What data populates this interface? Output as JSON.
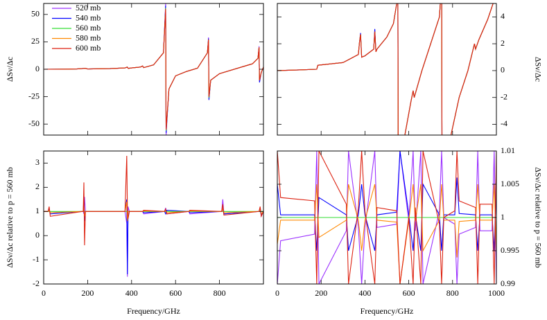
{
  "chart_data": [
    {
      "type": "line",
      "ylabel": "ΔSν/Δc",
      "xlim": [
        0,
        1000
      ],
      "ylim": [
        -60,
        60
      ],
      "xticks": [
        0,
        200,
        400,
        600,
        800
      ],
      "yticks": [
        -50,
        -25,
        0,
        25,
        50
      ],
      "legend": "upper left",
      "x": [
        0,
        100,
        150,
        190,
        200,
        300,
        370,
        380,
        385,
        400,
        440,
        450,
        455,
        500,
        545,
        555,
        557,
        570,
        600,
        650,
        700,
        745,
        750,
        752,
        760,
        800,
        900,
        950,
        975,
        980,
        982,
        990,
        1000
      ],
      "series": [
        {
          "name": "520 mb",
          "color": "#9b30ff",
          "values": [
            0,
            0.1,
            0.3,
            0.8,
            0.3,
            0.6,
            1.2,
            2,
            0.8,
            1.2,
            2,
            3,
            1.5,
            4,
            15,
            60,
            -60,
            -18,
            -6,
            -2,
            1,
            15,
            29,
            -27,
            -10,
            -4,
            2,
            5,
            10,
            21,
            -11,
            -3,
            2
          ]
        },
        {
          "name": "540 mb",
          "color": "#0000ff",
          "values": [
            0,
            0.1,
            0.3,
            0.8,
            0.3,
            0.6,
            1.2,
            2,
            0.8,
            1.2,
            2,
            3,
            1.5,
            4,
            15,
            58,
            -58,
            -18,
            -6,
            -2,
            1,
            15,
            28,
            -28,
            -10,
            -4,
            2,
            5,
            10,
            20,
            -12,
            -3,
            2
          ]
        },
        {
          "name": "560 mb",
          "color": "#33dd33",
          "values": [
            0,
            0.1,
            0.3,
            0.8,
            0.3,
            0.6,
            1.2,
            2,
            0.8,
            1.2,
            2,
            3,
            1.5,
            4,
            15,
            56,
            -56,
            -18,
            -6,
            -2,
            1,
            15,
            27,
            -26,
            -10,
            -4,
            2,
            5,
            10,
            20,
            -10,
            -3,
            2
          ]
        },
        {
          "name": "580 mb",
          "color": "#ff8800",
          "values": [
            0,
            0.1,
            0.3,
            0.8,
            0.3,
            0.6,
            1.2,
            2,
            0.8,
            1.2,
            2,
            3,
            1.5,
            4,
            15,
            55,
            -55,
            -18,
            -6,
            -2,
            1,
            15,
            27,
            -25,
            -10,
            -4,
            2,
            5,
            10,
            20,
            -10,
            -3,
            2
          ]
        },
        {
          "name": "600 mb",
          "color": "#dd2211",
          "values": [
            0,
            0.1,
            0.3,
            0.8,
            0.3,
            0.6,
            1.2,
            2,
            0.8,
            1.2,
            2,
            3,
            1.5,
            4,
            15,
            55,
            -55,
            -18,
            -6,
            -2,
            1,
            15,
            27,
            -25,
            -10,
            -4,
            2,
            5,
            10,
            20,
            -10,
            -3,
            2
          ]
        }
      ]
    },
    {
      "type": "line",
      "ylabel": "ΔSν/Δc",
      "xlim": [
        0,
        1000
      ],
      "ylim": [
        -4.8,
        5
      ],
      "xticks": [
        0,
        200,
        400,
        600,
        800,
        1000
      ],
      "yticks": [
        -4,
        -2,
        0,
        2,
        4
      ],
      "x": [
        0,
        100,
        180,
        185,
        300,
        370,
        375,
        380,
        385,
        400,
        440,
        445,
        450,
        455,
        500,
        530,
        545,
        550,
        552,
        560,
        580,
        610,
        620,
        625,
        660,
        700,
        740,
        748,
        750,
        752,
        790,
        830,
        870,
        900,
        905,
        920,
        960,
        985,
        1000
      ],
      "series": [
        {
          "name": "520 mb",
          "color": "#9b30ff",
          "values": [
            0,
            0.05,
            0.1,
            0.4,
            0.6,
            1.2,
            2.1,
            2.6,
            1,
            1.1,
            1.6,
            3,
            1.4,
            1.6,
            2.5,
            3.5,
            5,
            8,
            -8,
            -6,
            -5,
            -2.3,
            -1.5,
            -2,
            0,
            2,
            4,
            6,
            8,
            -8,
            -5,
            -2,
            0,
            2,
            1.6,
            2.3,
            3.8,
            5,
            6
          ]
        },
        {
          "name": "540 mb",
          "color": "#0000ff",
          "values": [
            0,
            0.05,
            0.1,
            0.4,
            0.6,
            1.2,
            2.1,
            2.8,
            1,
            1.1,
            1.6,
            3.1,
            1.4,
            1.6,
            2.5,
            3.5,
            5,
            8,
            -8,
            -6,
            -5,
            -2.3,
            -1.5,
            -2,
            0,
            2,
            4,
            6,
            8,
            -8,
            -5,
            -2,
            0,
            2,
            1.6,
            2.3,
            3.8,
            5,
            6
          ]
        },
        {
          "name": "560 mb",
          "color": "#33dd33",
          "values": [
            0,
            0.05,
            0.1,
            0.4,
            0.6,
            1.2,
            2.1,
            2.7,
            1,
            1.1,
            1.6,
            2.9,
            1.4,
            1.6,
            2.5,
            3.5,
            5,
            8,
            -8,
            -6,
            -5,
            -2.3,
            -1.5,
            -2,
            0,
            2,
            4,
            6,
            8,
            -8,
            -5,
            -2,
            0,
            2,
            1.6,
            2.3,
            3.8,
            5,
            6
          ]
        },
        {
          "name": "580 mb",
          "color": "#ff8800",
          "values": [
            0,
            0.05,
            0.1,
            0.4,
            0.6,
            1.2,
            2.1,
            2.7,
            1,
            1.1,
            1.6,
            2.9,
            1.4,
            1.6,
            2.5,
            3.5,
            5,
            8,
            -8,
            -6,
            -5,
            -2.3,
            -1.5,
            -2,
            0,
            2,
            4,
            6,
            8,
            -8,
            -5,
            -2,
            0,
            2,
            1.6,
            2.3,
            3.8,
            5,
            6
          ]
        },
        {
          "name": "600 mb",
          "color": "#dd2211",
          "values": [
            0,
            0.05,
            0.1,
            0.4,
            0.6,
            1.2,
            2.1,
            2.7,
            1,
            1.1,
            1.6,
            2.9,
            1.4,
            1.6,
            2.5,
            3.5,
            5,
            8,
            -8,
            -6,
            -5,
            -2.3,
            -1.5,
            -2,
            0,
            2,
            4,
            6,
            8,
            -8,
            -5,
            -2,
            0,
            2,
            1.6,
            2.3,
            3.8,
            5,
            6
          ]
        }
      ]
    },
    {
      "type": "line",
      "xlabel": "Frequency/GHz",
      "ylabel": "ΔSν/Δc relative to p = 560 mb",
      "xlim": [
        0,
        1000
      ],
      "ylim": [
        -2,
        3.5
      ],
      "xticks": [
        0,
        200,
        400,
        600,
        800
      ],
      "yticks": [
        -2,
        -1,
        0,
        1,
        2,
        3
      ],
      "x": [
        0,
        20,
        25,
        30,
        175,
        180,
        183,
        186,
        190,
        370,
        378,
        381,
        384,
        390,
        450,
        455,
        550,
        555,
        560,
        660,
        665,
        810,
        815,
        820,
        980,
        985,
        990,
        1000
      ],
      "series": [
        {
          "name": "520 mb",
          "color": "#9b30ff",
          "values": [
            1,
            1,
            1.05,
            0.95,
            1,
            1,
            0.9,
            1.6,
            1,
            1,
            0.5,
            -1.7,
            1.2,
            1,
            1,
            0.9,
            1,
            1.15,
            0.9,
            1,
            0.9,
            1,
            1.5,
            0.9,
            1,
            1.1,
            0.8,
            1
          ]
        },
        {
          "name": "540 mb",
          "color": "#0000ff",
          "values": [
            1,
            1,
            1.1,
            0.9,
            1,
            1,
            1.5,
            0.6,
            1,
            1,
            1.5,
            -1.6,
            1,
            1,
            1,
            0.95,
            1,
            0.9,
            1.05,
            1,
            0.95,
            1,
            1.1,
            0.9,
            1,
            1.15,
            0.85,
            1
          ]
        },
        {
          "name": "560 mb",
          "color": "#33dd33",
          "values": [
            1,
            1,
            1,
            1,
            1,
            1,
            1,
            1,
            1,
            1,
            1,
            1,
            1,
            1,
            1,
            1,
            1,
            1,
            1,
            1,
            1,
            1,
            1,
            1,
            1,
            1,
            1,
            1
          ]
        },
        {
          "name": "580 mb",
          "color": "#ff8800",
          "values": [
            1,
            1,
            1.05,
            0.95,
            1,
            1,
            1.2,
            0.8,
            1,
            1,
            1.4,
            0.6,
            1,
            1,
            1,
            1.02,
            1,
            1.05,
            0.95,
            1,
            1.02,
            1,
            1.1,
            0.95,
            1,
            1.1,
            0.9,
            1
          ]
        },
        {
          "name": "600 mb",
          "color": "#dd2211",
          "values": [
            1,
            1,
            1.2,
            0.8,
            1,
            1,
            2.2,
            -0.4,
            1,
            1,
            3.3,
            1,
            0.7,
            1,
            1,
            1.05,
            1,
            1.1,
            0.9,
            1,
            1.05,
            1,
            1.3,
            0.85,
            1,
            1.2,
            0.8,
            1
          ]
        }
      ]
    },
    {
      "type": "line",
      "xlabel": "Frequency/GHz",
      "ylabel": "ΔSν/Δc relative to p = 560 mb",
      "xlim": [
        0,
        1000
      ],
      "ylim": [
        0.99,
        1.01
      ],
      "xticks": [
        0,
        200,
        400,
        600,
        800,
        1000
      ],
      "yticks": [
        0.99,
        0.995,
        1,
        1.005,
        1.01
      ],
      "x": [
        0,
        15,
        170,
        180,
        190,
        315,
        325,
        370,
        385,
        400,
        445,
        455,
        545,
        560,
        600,
        620,
        630,
        655,
        665,
        740,
        750,
        760,
        810,
        820,
        830,
        905,
        915,
        925,
        980,
        990,
        1000
      ],
      "series": [
        {
          "name": "520 mb",
          "color": "#9b30ff",
          "values": [
            0.99,
            0.9965,
            0.9975,
            1.01,
            0.99,
            0.998,
            1.01,
            0.9985,
            0.99,
            0.9985,
            1.01,
            0.9985,
            0.999,
            1.01,
            0.9995,
            1.01,
            0.998,
            1.01,
            0.99,
            1.001,
            1.01,
            1,
            0.999,
            0.99,
            0.9975,
            0.9985,
            1.01,
            0.998,
            0.998,
            1.01,
            0.99
          ]
        },
        {
          "name": "540 mb",
          "color": "#0000ff",
          "values": [
            1.005,
            1.0004,
            1.0004,
            0.995,
            1.003,
            1.0004,
            0.995,
            1.0004,
            1.005,
            1.0004,
            0.995,
            1.0004,
            1.0008,
            1.01,
            1.0005,
            0.995,
            1.0005,
            0.995,
            1.005,
            1.0004,
            0.995,
            1.0004,
            1.0004,
            1.006,
            1.0006,
            1.0004,
            0.995,
            1.0004,
            1.0004,
            0.995,
            1.005
          ]
        },
        {
          "name": "560 mb",
          "color": "#33dd33",
          "values": [
            1,
            1,
            1,
            1,
            1,
            1,
            1,
            1,
            1,
            1,
            1,
            1,
            1,
            1,
            1,
            1,
            1,
            1,
            1,
            1,
            1,
            1,
            1,
            1,
            1,
            1,
            1,
            1,
            1,
            1,
            1
          ]
        },
        {
          "name": "580 mb",
          "color": "#ff8800",
          "values": [
            0.996,
            0.9996,
            0.9996,
            1.005,
            0.997,
            0.9996,
            1.005,
            0.9996,
            0.995,
            0.9996,
            1.005,
            0.9996,
            0.9993,
            0.99,
            0.9995,
            1.005,
            0.9995,
            1.005,
            0.995,
            0.9996,
            1.005,
            0.9996,
            0.9996,
            0.994,
            0.9994,
            0.9996,
            1.005,
            0.9996,
            0.9996,
            1.005,
            0.995
          ]
        },
        {
          "name": "600 mb",
          "color": "#dd2211",
          "values": [
            1.01,
            1.003,
            1.0025,
            0.99,
            1.01,
            1.002,
            0.99,
            1.0015,
            1.01,
            1.001,
            0.99,
            1.0015,
            1.001,
            0.99,
            1,
            0.99,
            1.0015,
            0.99,
            1.01,
            0.999,
            0.99,
            1,
            1.001,
            1.01,
            1.0025,
            1.0015,
            0.99,
            1.002,
            1.002,
            0.99,
            1.01
          ]
        }
      ]
    }
  ]
}
